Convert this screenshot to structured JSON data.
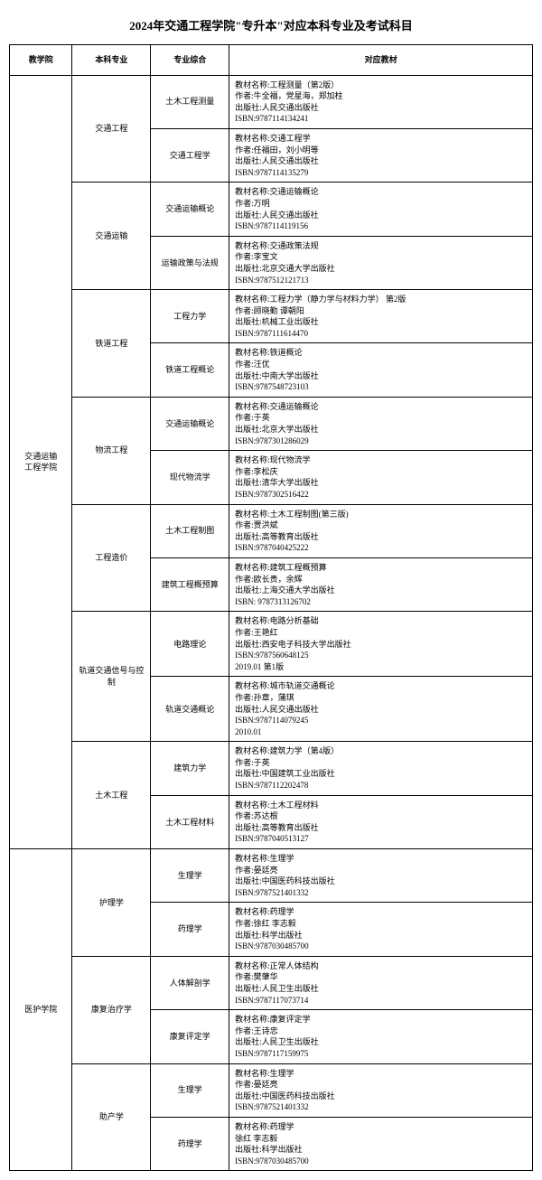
{
  "title": "2024年交通工程学院\"专升本\"对应本科专业及考试科目",
  "headers": {
    "col1": "教学院",
    "col2": "本科专业",
    "col3": "专业综合",
    "col4": "对应教材"
  },
  "college1": "交通运输\n工程学院",
  "college2": "医护学院",
  "majors": {
    "m1": "交通工程",
    "m2": "交通运输",
    "m3": "铁道工程",
    "m4": "物流工程",
    "m5": "工程造价",
    "m6": "轨道交通信号与控制",
    "m7": "土木工程",
    "m8": "护理学",
    "m9": "康复治疗学",
    "m10": "助产学"
  },
  "subjects": {
    "s1": "土木工程测量",
    "s2": "交通工程学",
    "s3": "交通运输概论",
    "s4": "运输政策与法规",
    "s5": "工程力学",
    "s6": "铁道工程概论",
    "s7": "交通运输概论",
    "s8": "现代物流学",
    "s9": "土木工程制图",
    "s10": "建筑工程概预算",
    "s11": "电路理论",
    "s12": "轨道交通概论",
    "s13": "建筑力学",
    "s14": "土木工程材料",
    "s15": "生理学",
    "s16": "药理学",
    "s17": "人体解剖学",
    "s18": "康复评定学",
    "s19": "生理学",
    "s20": "药理学"
  },
  "books": {
    "b1": "教材名称:工程测量（第2版）\n作者:牛全福，党星海，郑加柱\n出版社:人民交通出版社\nISBN:9787114134241",
    "b2": "教材名称:交通工程学\n作者:任福田，刘小明等\n出版社:人民交通出版社\nISBN:9787114135279",
    "b3": "教材名称:交通运输概论\n作者:万明\n出版社:人民交通出版社\nISBN:9787114119156",
    "b4": "教材名称:交通政策法规\n作者:李宝文\n出版社:北京交通大学出版社\nISBN:9787512121713",
    "b5": "教材名称:工程力学（静力学与材料力学） 第2版\n作者:顾晓勤 谭朝阳\n出版社:机械工业出版社\nISBN:9787111614470",
    "b6": "教材名称:铁道概论\n作者:汪优\n出版社:中南大学出版社\nISBN:9787548723103",
    "b7": "教材名称:交通运输概论\n作者:于英\n出版社:北京大学出版社\nISBN:9787301286029",
    "b8": "教材名称:现代物流学\n作者:李松庆\n出版社:清华大学出版社\nISBN:9787302516422",
    "b9": "教材名称:土木工程制图(第三版)\n作者:贾洪斌\n出版社:高等教育出版社\nISBN:9787040425222",
    "b10": "教材名称:建筑工程概预算\n作者:欧长贵，余辉\n出版社:上海交通大学出版社\nISBN: 9787313126702",
    "b11": "教材名称:电路分析基础\n作者:王艳红\n出版社:西安电子科技大学出版社\nISBN:9787560648125\n2019.01 第1版",
    "b12": "教材名称:城市轨道交通概论\n作者:孙章，蒲琪\n出版社:人民交通出版社\nISBN:9787114079245\n2010.01",
    "b13": "教材名称:建筑力学（第4版）\n作者:于英\n出版社:中国建筑工业出版社\nISBN:9787112202478",
    "b14": "教材名称:土木工程材料\n作者:苏达根\n出版社:高等教育出版社\nISBN:9787040513127",
    "b15": "教材名称:生理学\n作者:晏廷亮\n出版社:中国医药科技出版社\nISBN:9787521401332",
    "b16": "教材名称:药理学\n作者:徐红 李志毅\n出版社:科学出版社\nISBN:9787030485700",
    "b17": "教材名称:正常人体结构\n作者:樊肇华\n出版社:人民卫生出版社\nISBN:9787117073714",
    "b18": "教材名称:康复评定学\n作者:王诗忠\n出版社:人民卫生出版社\nISBN:9787117159975",
    "b19": "教材名称:生理学\n作者:晏廷亮\n出版社:中国医药科技出版社\nISBN:9787521401332",
    "b20": "教材名称:药理学\n徐红 李志毅\n出版社:科学出版社\nISBN:9787030485700"
  }
}
